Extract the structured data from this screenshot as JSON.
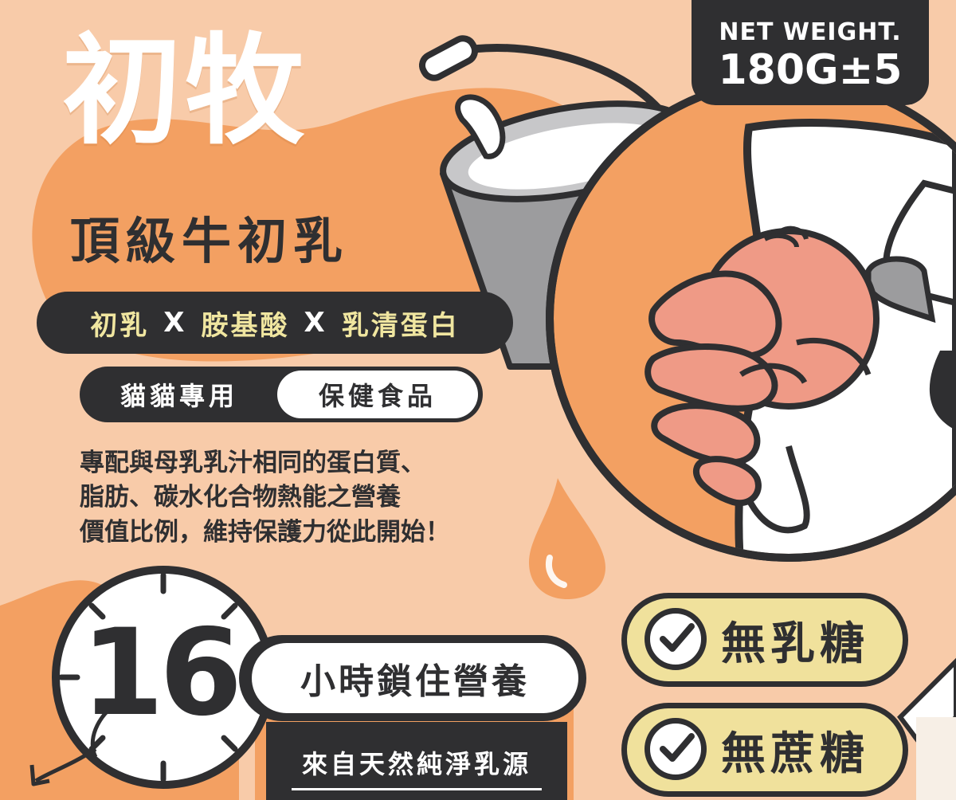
{
  "brand": {
    "title": "初牧",
    "subtitle": "頂級牛初乳"
  },
  "ingredients": {
    "items": [
      "初乳",
      "胺基酸",
      "乳清蛋白"
    ],
    "separator": "X"
  },
  "tags": {
    "left": "貓貓專用",
    "right": "保健食品"
  },
  "description": {
    "lines": [
      "專配與母乳乳汁相同的蛋白質、",
      "脂肪、碳水化合物熱能之營養",
      "價值比例，維持保護力從此開始！"
    ]
  },
  "net_weight": {
    "label": "NET WEIGHT.",
    "value": "180G±5"
  },
  "clock": {
    "number": "16",
    "hours_label": "小時鎖住營養",
    "source_label": "來自天然純淨乳源"
  },
  "badges": [
    {
      "label": "無乳糖",
      "icon": "check-circle-icon"
    },
    {
      "label": "無蔗糖",
      "icon": "check-circle-icon"
    }
  ],
  "colors": {
    "background": "#f8cba9",
    "accent_orange": "#f3a062",
    "dark": "#2f2f31",
    "badge_yellow": "#f0e19c",
    "pill_text_yellow": "#f0e6a0",
    "hand_pink": "#ef9a86"
  }
}
